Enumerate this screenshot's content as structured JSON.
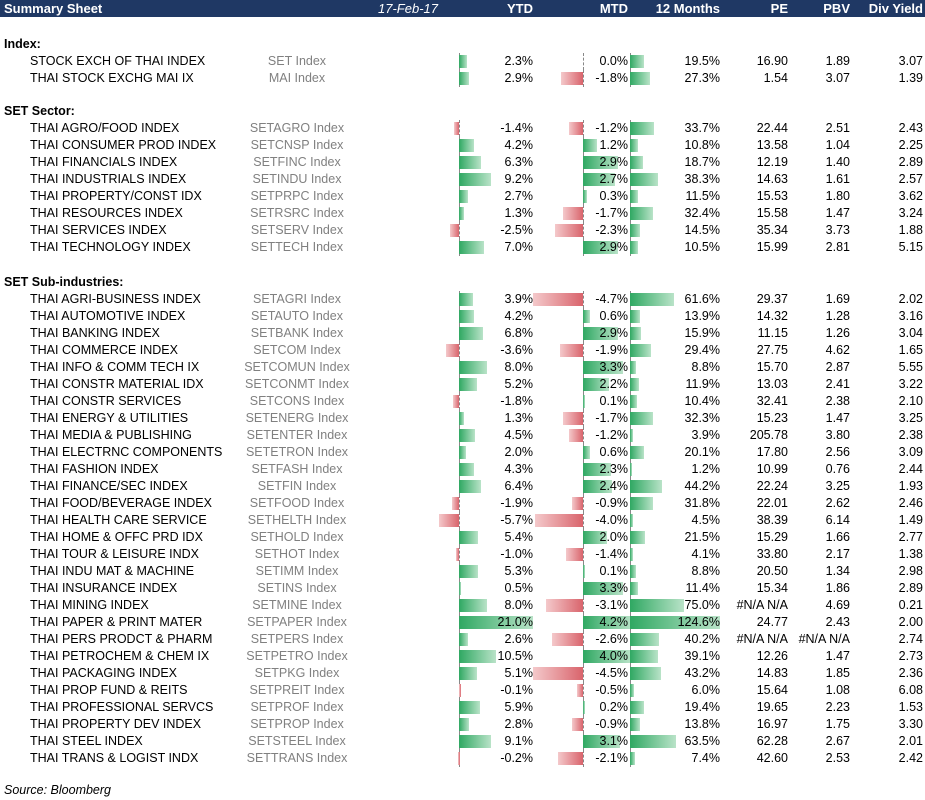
{
  "header": {
    "title": "Summary Sheet",
    "date": "17-Feb-17",
    "ytd": "YTD",
    "mtd": "MTD",
    "m12": "12 Months",
    "pe": "PE",
    "pbv": "PBV",
    "dy": "Div Yield"
  },
  "colors": {
    "header_bg": "#1f3864",
    "positive": "#2fa862",
    "negative": "#d9646c"
  },
  "sections": [
    {
      "title": "Index:",
      "rows": [
        {
          "name": "STOCK EXCH OF THAI INDEX",
          "ticker": "SET Index",
          "ytd": "2.3%",
          "mtd": "0.0%",
          "m12": "19.5%",
          "pe": "16.90",
          "pbv": "1.89",
          "dy": "3.07"
        },
        {
          "name": "THAI STOCK EXCHG MAI IX",
          "ticker": "MAI Index",
          "ytd": "2.9%",
          "mtd": "-1.8%",
          "m12": "27.3%",
          "pe": "1.54",
          "pbv": "3.07",
          "dy": "1.39"
        }
      ]
    },
    {
      "title": "SET Sector:",
      "rows": [
        {
          "name": "THAI AGRO/FOOD INDEX",
          "ticker": "SETAGRO Index",
          "ytd": "-1.4%",
          "mtd": "-1.2%",
          "m12": "33.7%",
          "pe": "22.44",
          "pbv": "2.51",
          "dy": "2.43"
        },
        {
          "name": "THAI CONSUMER PROD INDEX",
          "ticker": "SETCNSP Index",
          "ytd": "4.2%",
          "mtd": "1.2%",
          "m12": "10.8%",
          "pe": "13.58",
          "pbv": "1.04",
          "dy": "2.25"
        },
        {
          "name": "THAI FINANCIALS INDEX",
          "ticker": "SETFINC Index",
          "ytd": "6.3%",
          "mtd": "2.9%",
          "m12": "18.7%",
          "pe": "12.19",
          "pbv": "1.40",
          "dy": "2.89"
        },
        {
          "name": "THAI INDUSTRIALS INDEX",
          "ticker": "SETINDU Index",
          "ytd": "9.2%",
          "mtd": "2.7%",
          "m12": "38.3%",
          "pe": "14.63",
          "pbv": "1.61",
          "dy": "2.57"
        },
        {
          "name": "THAI PROPERTY/CONST IDX",
          "ticker": "SETPRPC Index",
          "ytd": "2.7%",
          "mtd": "0.3%",
          "m12": "11.5%",
          "pe": "15.53",
          "pbv": "1.80",
          "dy": "3.62"
        },
        {
          "name": "THAI RESOURCES INDEX",
          "ticker": "SETRSRC Index",
          "ytd": "1.3%",
          "mtd": "-1.7%",
          "m12": "32.4%",
          "pe": "15.58",
          "pbv": "1.47",
          "dy": "3.24"
        },
        {
          "name": "THAI SERVICES INDEX",
          "ticker": "SETSERV Index",
          "ytd": "-2.5%",
          "mtd": "-2.3%",
          "m12": "14.5%",
          "pe": "35.34",
          "pbv": "3.73",
          "dy": "1.88"
        },
        {
          "name": "THAI TECHNOLOGY INDEX",
          "ticker": "SETTECH Index",
          "ytd": "7.0%",
          "mtd": "2.9%",
          "m12": "10.5%",
          "pe": "15.99",
          "pbv": "2.81",
          "dy": "5.15"
        }
      ]
    },
    {
      "title": "SET Sub-industries:",
      "rows": [
        {
          "name": "THAI AGRI-BUSINESS INDEX",
          "ticker": "SETAGRI Index",
          "ytd": "3.9%",
          "mtd": "-4.7%",
          "m12": "61.6%",
          "pe": "29.37",
          "pbv": "1.69",
          "dy": "2.02"
        },
        {
          "name": "THAI AUTOMOTIVE INDEX",
          "ticker": "SETAUTO Index",
          "ytd": "4.2%",
          "mtd": "0.6%",
          "m12": "13.9%",
          "pe": "14.32",
          "pbv": "1.28",
          "dy": "3.16"
        },
        {
          "name": "THAI BANKING INDEX",
          "ticker": "SETBANK Index",
          "ytd": "6.8%",
          "mtd": "2.9%",
          "m12": "15.9%",
          "pe": "11.15",
          "pbv": "1.26",
          "dy": "3.04"
        },
        {
          "name": "THAI COMMERCE INDEX",
          "ticker": "SETCOM Index",
          "ytd": "-3.6%",
          "mtd": "-1.9%",
          "m12": "29.4%",
          "pe": "27.75",
          "pbv": "4.62",
          "dy": "1.65"
        },
        {
          "name": "THAI INFO & COMM TECH IX",
          "ticker": "SETCOMUN Index",
          "ytd": "8.0%",
          "mtd": "3.3%",
          "m12": "8.8%",
          "pe": "15.70",
          "pbv": "2.87",
          "dy": "5.55"
        },
        {
          "name": "THAI CONSTR MATERIAL IDX",
          "ticker": "SETCONMT Index",
          "ytd": "5.2%",
          "mtd": "2.2%",
          "m12": "11.9%",
          "pe": "13.03",
          "pbv": "2.41",
          "dy": "3.22"
        },
        {
          "name": "THAI CONSTR SERVICES",
          "ticker": "SETCONS Index",
          "ytd": "-1.8%",
          "mtd": "0.1%",
          "m12": "10.4%",
          "pe": "32.41",
          "pbv": "2.38",
          "dy": "2.10"
        },
        {
          "name": "THAI ENERGY & UTILITIES",
          "ticker": "SETENERG Index",
          "ytd": "1.3%",
          "mtd": "-1.7%",
          "m12": "32.3%",
          "pe": "15.23",
          "pbv": "1.47",
          "dy": "3.25"
        },
        {
          "name": "THAI MEDIA & PUBLISHING",
          "ticker": "SETENTER Index",
          "ytd": "4.5%",
          "mtd": "-1.2%",
          "m12": "3.9%",
          "pe": "205.78",
          "pbv": "3.80",
          "dy": "2.38"
        },
        {
          "name": "THAI ELECTRNC COMPONENTS",
          "ticker": "SETETRON Index",
          "ytd": "2.0%",
          "mtd": "0.6%",
          "m12": "20.1%",
          "pe": "17.80",
          "pbv": "2.56",
          "dy": "3.09"
        },
        {
          "name": "THAI FASHION INDEX",
          "ticker": "SETFASH Index",
          "ytd": "4.3%",
          "mtd": "2.3%",
          "m12": "1.2%",
          "pe": "10.99",
          "pbv": "0.76",
          "dy": "2.44"
        },
        {
          "name": "THAI FINANCE/SEC INDEX",
          "ticker": "SETFIN Index",
          "ytd": "6.4%",
          "mtd": "2.4%",
          "m12": "44.2%",
          "pe": "22.24",
          "pbv": "3.25",
          "dy": "1.93"
        },
        {
          "name": "THAI FOOD/BEVERAGE INDEX",
          "ticker": "SETFOOD Index",
          "ytd": "-1.9%",
          "mtd": "-0.9%",
          "m12": "31.8%",
          "pe": "22.01",
          "pbv": "2.62",
          "dy": "2.46"
        },
        {
          "name": "THAI HEALTH CARE SERVICE",
          "ticker": "SETHELTH Index",
          "ytd": "-5.7%",
          "mtd": "-4.0%",
          "m12": "4.5%",
          "pe": "38.39",
          "pbv": "6.14",
          "dy": "1.49"
        },
        {
          "name": "THAI HOME & OFFC PRD IDX",
          "ticker": "SETHOLD Index",
          "ytd": "5.4%",
          "mtd": "2.0%",
          "m12": "21.5%",
          "pe": "15.29",
          "pbv": "1.66",
          "dy": "2.77"
        },
        {
          "name": "THAI TOUR & LEISURE INDX",
          "ticker": "SETHOT Index",
          "ytd": "-1.0%",
          "mtd": "-1.4%",
          "m12": "4.1%",
          "pe": "33.80",
          "pbv": "2.17",
          "dy": "1.38"
        },
        {
          "name": "THAI INDU MAT & MACHINE",
          "ticker": "SETIMM Index",
          "ytd": "5.3%",
          "mtd": "0.1%",
          "m12": "8.8%",
          "pe": "20.50",
          "pbv": "1.34",
          "dy": "2.98"
        },
        {
          "name": "THAI INSURANCE INDEX",
          "ticker": "SETINS Index",
          "ytd": "0.5%",
          "mtd": "3.3%",
          "m12": "11.4%",
          "pe": "15.34",
          "pbv": "1.86",
          "dy": "2.89"
        },
        {
          "name": "THAI MINING INDEX",
          "ticker": "SETMINE Index",
          "ytd": "8.0%",
          "mtd": "-3.1%",
          "m12": "75.0%",
          "pe": "#N/A N/A",
          "pbv": "4.69",
          "dy": "0.21"
        },
        {
          "name": "THAI PAPER & PRINT MATER",
          "ticker": "SETPAPER Index",
          "ytd": "21.0%",
          "mtd": "4.2%",
          "m12": "124.6%",
          "pe": "24.77",
          "pbv": "2.43",
          "dy": "2.00"
        },
        {
          "name": "THAI PERS PRODCT & PHARM",
          "ticker": "SETPERS Index",
          "ytd": "2.6%",
          "mtd": "-2.6%",
          "m12": "40.2%",
          "pe": "#N/A N/A",
          "pbv": "#N/A N/A",
          "dy": "2.74"
        },
        {
          "name": "THAI PETROCHEM & CHEM IX",
          "ticker": "SETPETRO Index",
          "ytd": "10.5%",
          "mtd": "4.0%",
          "m12": "39.1%",
          "pe": "12.26",
          "pbv": "1.47",
          "dy": "2.73"
        },
        {
          "name": "THAI PACKAGING INDEX",
          "ticker": "SETPKG Index",
          "ytd": "5.1%",
          "mtd": "-4.5%",
          "m12": "43.2%",
          "pe": "14.83",
          "pbv": "1.85",
          "dy": "2.36"
        },
        {
          "name": "THAI PROP FUND & REITS",
          "ticker": "SETPREIT Index",
          "ytd": "-0.1%",
          "mtd": "-0.5%",
          "m12": "6.0%",
          "pe": "15.64",
          "pbv": "1.08",
          "dy": "6.08"
        },
        {
          "name": "THAI PROFESSIONAL SERVCS",
          "ticker": "SETPROF Index",
          "ytd": "5.9%",
          "mtd": "0.2%",
          "m12": "19.4%",
          "pe": "19.65",
          "pbv": "2.23",
          "dy": "1.53"
        },
        {
          "name": "THAI PROPERTY DEV INDEX",
          "ticker": "SETPROP Index",
          "ytd": "2.8%",
          "mtd": "-0.9%",
          "m12": "13.8%",
          "pe": "16.97",
          "pbv": "1.75",
          "dy": "3.30"
        },
        {
          "name": "THAI STEEL INDEX",
          "ticker": "SETSTEEL Index",
          "ytd": "9.1%",
          "mtd": "3.1%",
          "m12": "63.5%",
          "pe": "62.28",
          "pbv": "2.67",
          "dy": "2.01"
        },
        {
          "name": "THAI TRANS & LOGIST INDX",
          "ticker": "SETTRANS Index",
          "ytd": "-0.2%",
          "mtd": "-2.1%",
          "m12": "7.4%",
          "pe": "42.60",
          "pbv": "2.53",
          "dy": "2.42"
        }
      ]
    }
  ],
  "source": "Source: Bloomberg"
}
